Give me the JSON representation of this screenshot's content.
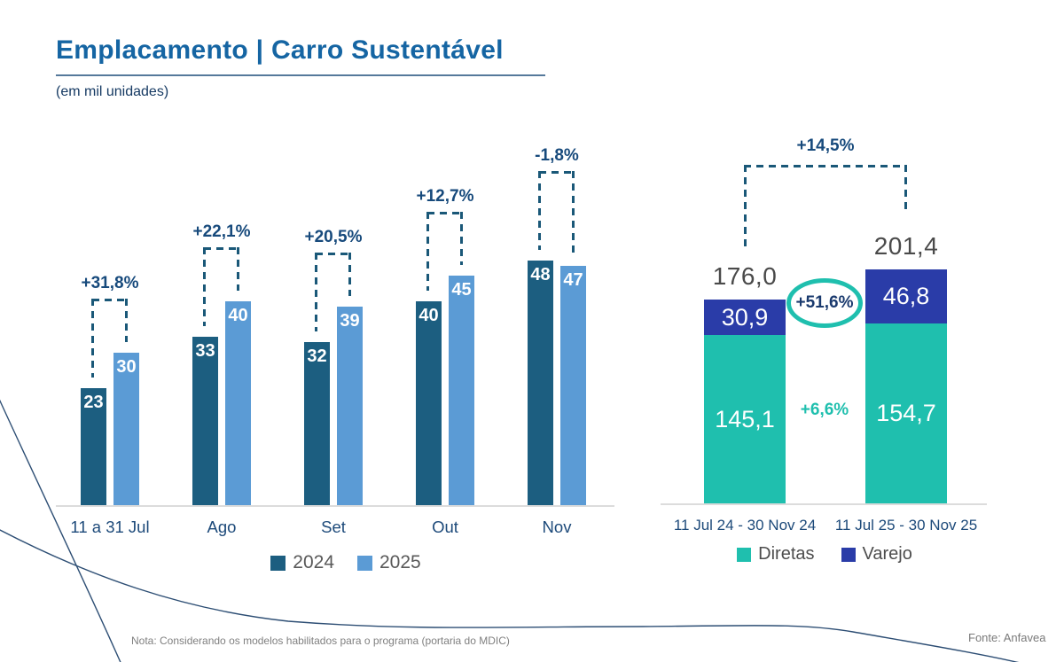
{
  "header": {
    "title": "Emplacamento | Carro Sustentável",
    "subtitle": "(em mil unidades)"
  },
  "colors": {
    "title": "#1565a3",
    "underline": "#55799b",
    "navy_label": "#1d4a7a",
    "pct_label": "#174a7c",
    "dash": "#1a5878",
    "bar2024": "#1c5e80",
    "bar2025": "#5b9bd5",
    "diretas": "#1fbfae",
    "varejo": "#2a3ca8",
    "total_text": "#4a4a4a",
    "legend_text": "#595959",
    "axis": "#dcdcdc"
  },
  "chart_data": [
    {
      "type": "bar",
      "title": "Emplacamento mensal (em mil unidades)",
      "categories": [
        "11 a 31 Jul",
        "Ago",
        "Set",
        "Out",
        "Nov"
      ],
      "series": [
        {
          "name": "2024",
          "values": [
            23,
            33,
            32,
            40,
            48
          ]
        },
        {
          "name": "2025",
          "values": [
            30,
            40,
            39,
            45,
            47
          ]
        }
      ],
      "deltas": [
        "+31,8%",
        "+22,1%",
        "+20,5%",
        "+12,7%",
        "-1,8%"
      ],
      "ylim": [
        0,
        50
      ],
      "grid": false,
      "legend_position": "bottom"
    },
    {
      "type": "bar",
      "subtype": "stacked",
      "title": "Emplacamento acumulado (em mil unidades)",
      "categories": [
        "11 Jul 24 - 30 Nov 24",
        "11 Jul 25 - 30 Nov 25"
      ],
      "series": [
        {
          "name": "Diretas",
          "values": [
            145.1,
            154.7
          ],
          "labels": [
            "145,1",
            "154,7"
          ]
        },
        {
          "name": "Varejo",
          "values": [
            30.9,
            46.8
          ],
          "labels": [
            "30,9",
            "46,8"
          ]
        }
      ],
      "totals": [
        "176,0",
        "201,4"
      ],
      "total_delta": "+14,5%",
      "varejo_delta": "+51,6%",
      "diretas_delta": "+6,6%",
      "ylim": [
        0,
        210
      ],
      "grid": false,
      "legend_position": "bottom"
    }
  ],
  "footer": {
    "note": "Nota: Considerando os modelos habilitados para o programa (portaria do MDIC)",
    "fonte": "Fonte: Anfavea"
  }
}
